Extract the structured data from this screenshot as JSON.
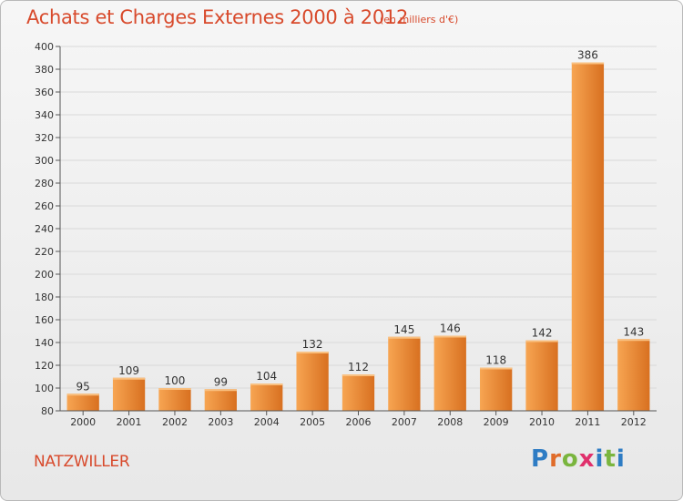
{
  "header": {
    "title": "Achats et Charges Externes 2000 à 2012",
    "subtitle": "(en milliers d'€)"
  },
  "footer": {
    "commune": "NATZWILLER",
    "logo_text": "Proxiti"
  },
  "colors": {
    "title": "#d84a2c",
    "bar_light": "#f7a552",
    "bar_dark": "#d87020",
    "grid": "#d9d9d9"
  },
  "chart_data": {
    "type": "bar",
    "title": "Achats et Charges Externes 2000 à 2012",
    "subtitle": "(en milliers d'€)",
    "categories": [
      "2000",
      "2001",
      "2002",
      "2003",
      "2004",
      "2005",
      "2006",
      "2007",
      "2008",
      "2009",
      "2010",
      "2011",
      "2012"
    ],
    "values": [
      95,
      109,
      100,
      99,
      104,
      132,
      112,
      145,
      146,
      118,
      142,
      386,
      143
    ],
    "ylim": [
      80,
      400
    ],
    "yticks": [
      80,
      100,
      120,
      140,
      160,
      180,
      200,
      220,
      240,
      260,
      280,
      300,
      320,
      340,
      360,
      380,
      400
    ],
    "grid": true,
    "xlabel": "",
    "ylabel": ""
  }
}
